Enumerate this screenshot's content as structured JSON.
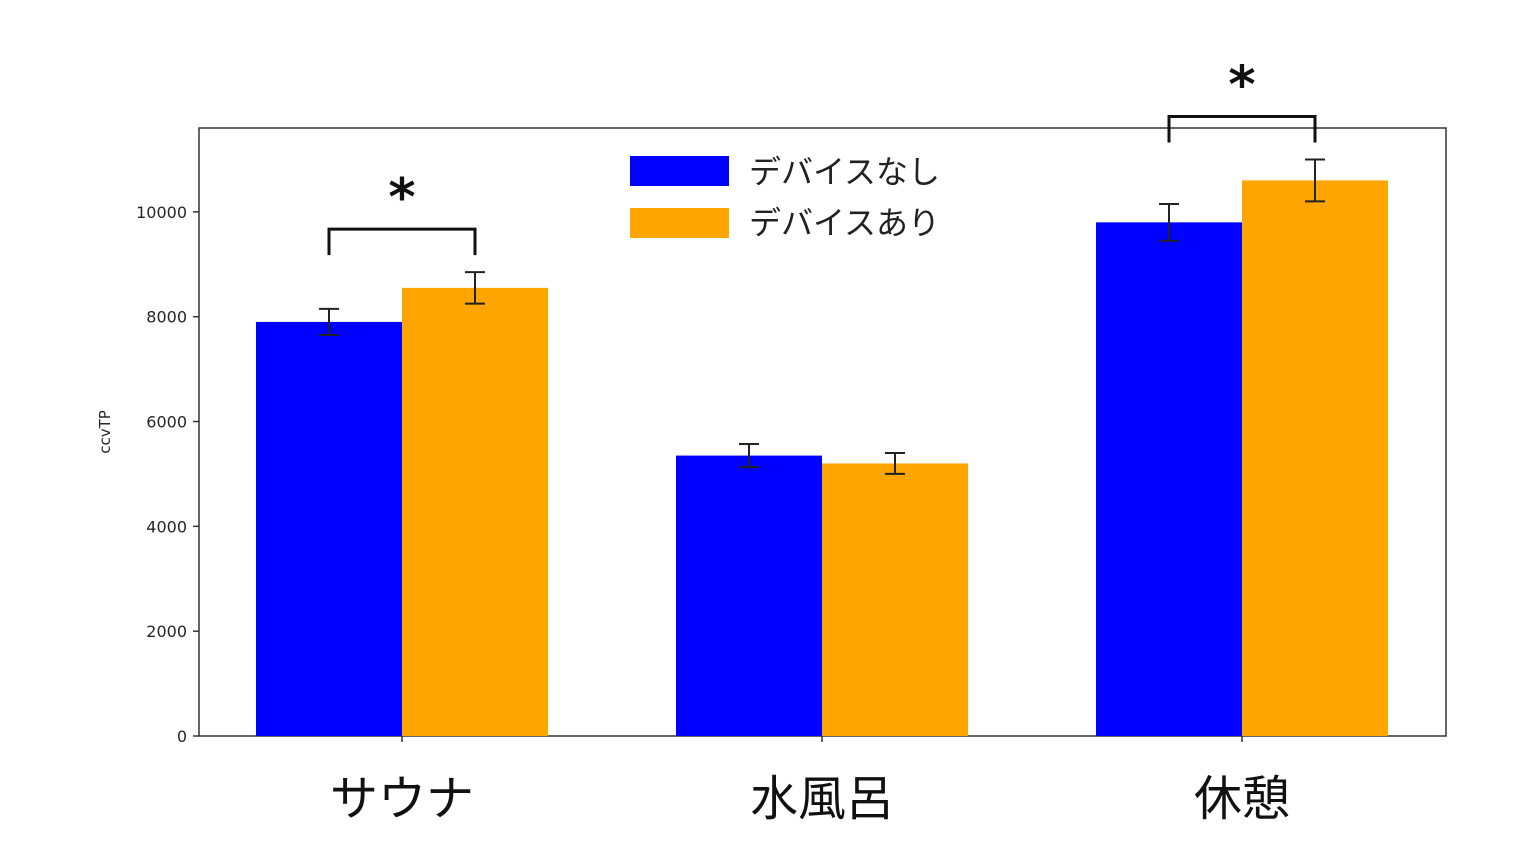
{
  "chart_data": {
    "type": "bar",
    "categories": [
      "サウナ",
      "水風呂",
      "休憩"
    ],
    "series": [
      {
        "name": "デバイスなし",
        "color": "#0000ff",
        "values": [
          7900,
          5350,
          9800
        ],
        "errors": [
          250,
          220,
          350
        ]
      },
      {
        "name": "デバイスあり",
        "color": "#ffa500",
        "values": [
          8550,
          5200,
          10600
        ],
        "errors": [
          300,
          200,
          400
        ]
      }
    ],
    "ylabel": "ccvTP",
    "xlabel": "",
    "ylim": [
      0,
      11600
    ],
    "yticks": [
      0,
      2000,
      4000,
      6000,
      8000,
      10000
    ],
    "legend_position": "top-center",
    "grid": false,
    "annotations": [
      {
        "category": "サウナ",
        "text": "*"
      },
      {
        "category": "休憩",
        "text": "*"
      }
    ]
  }
}
